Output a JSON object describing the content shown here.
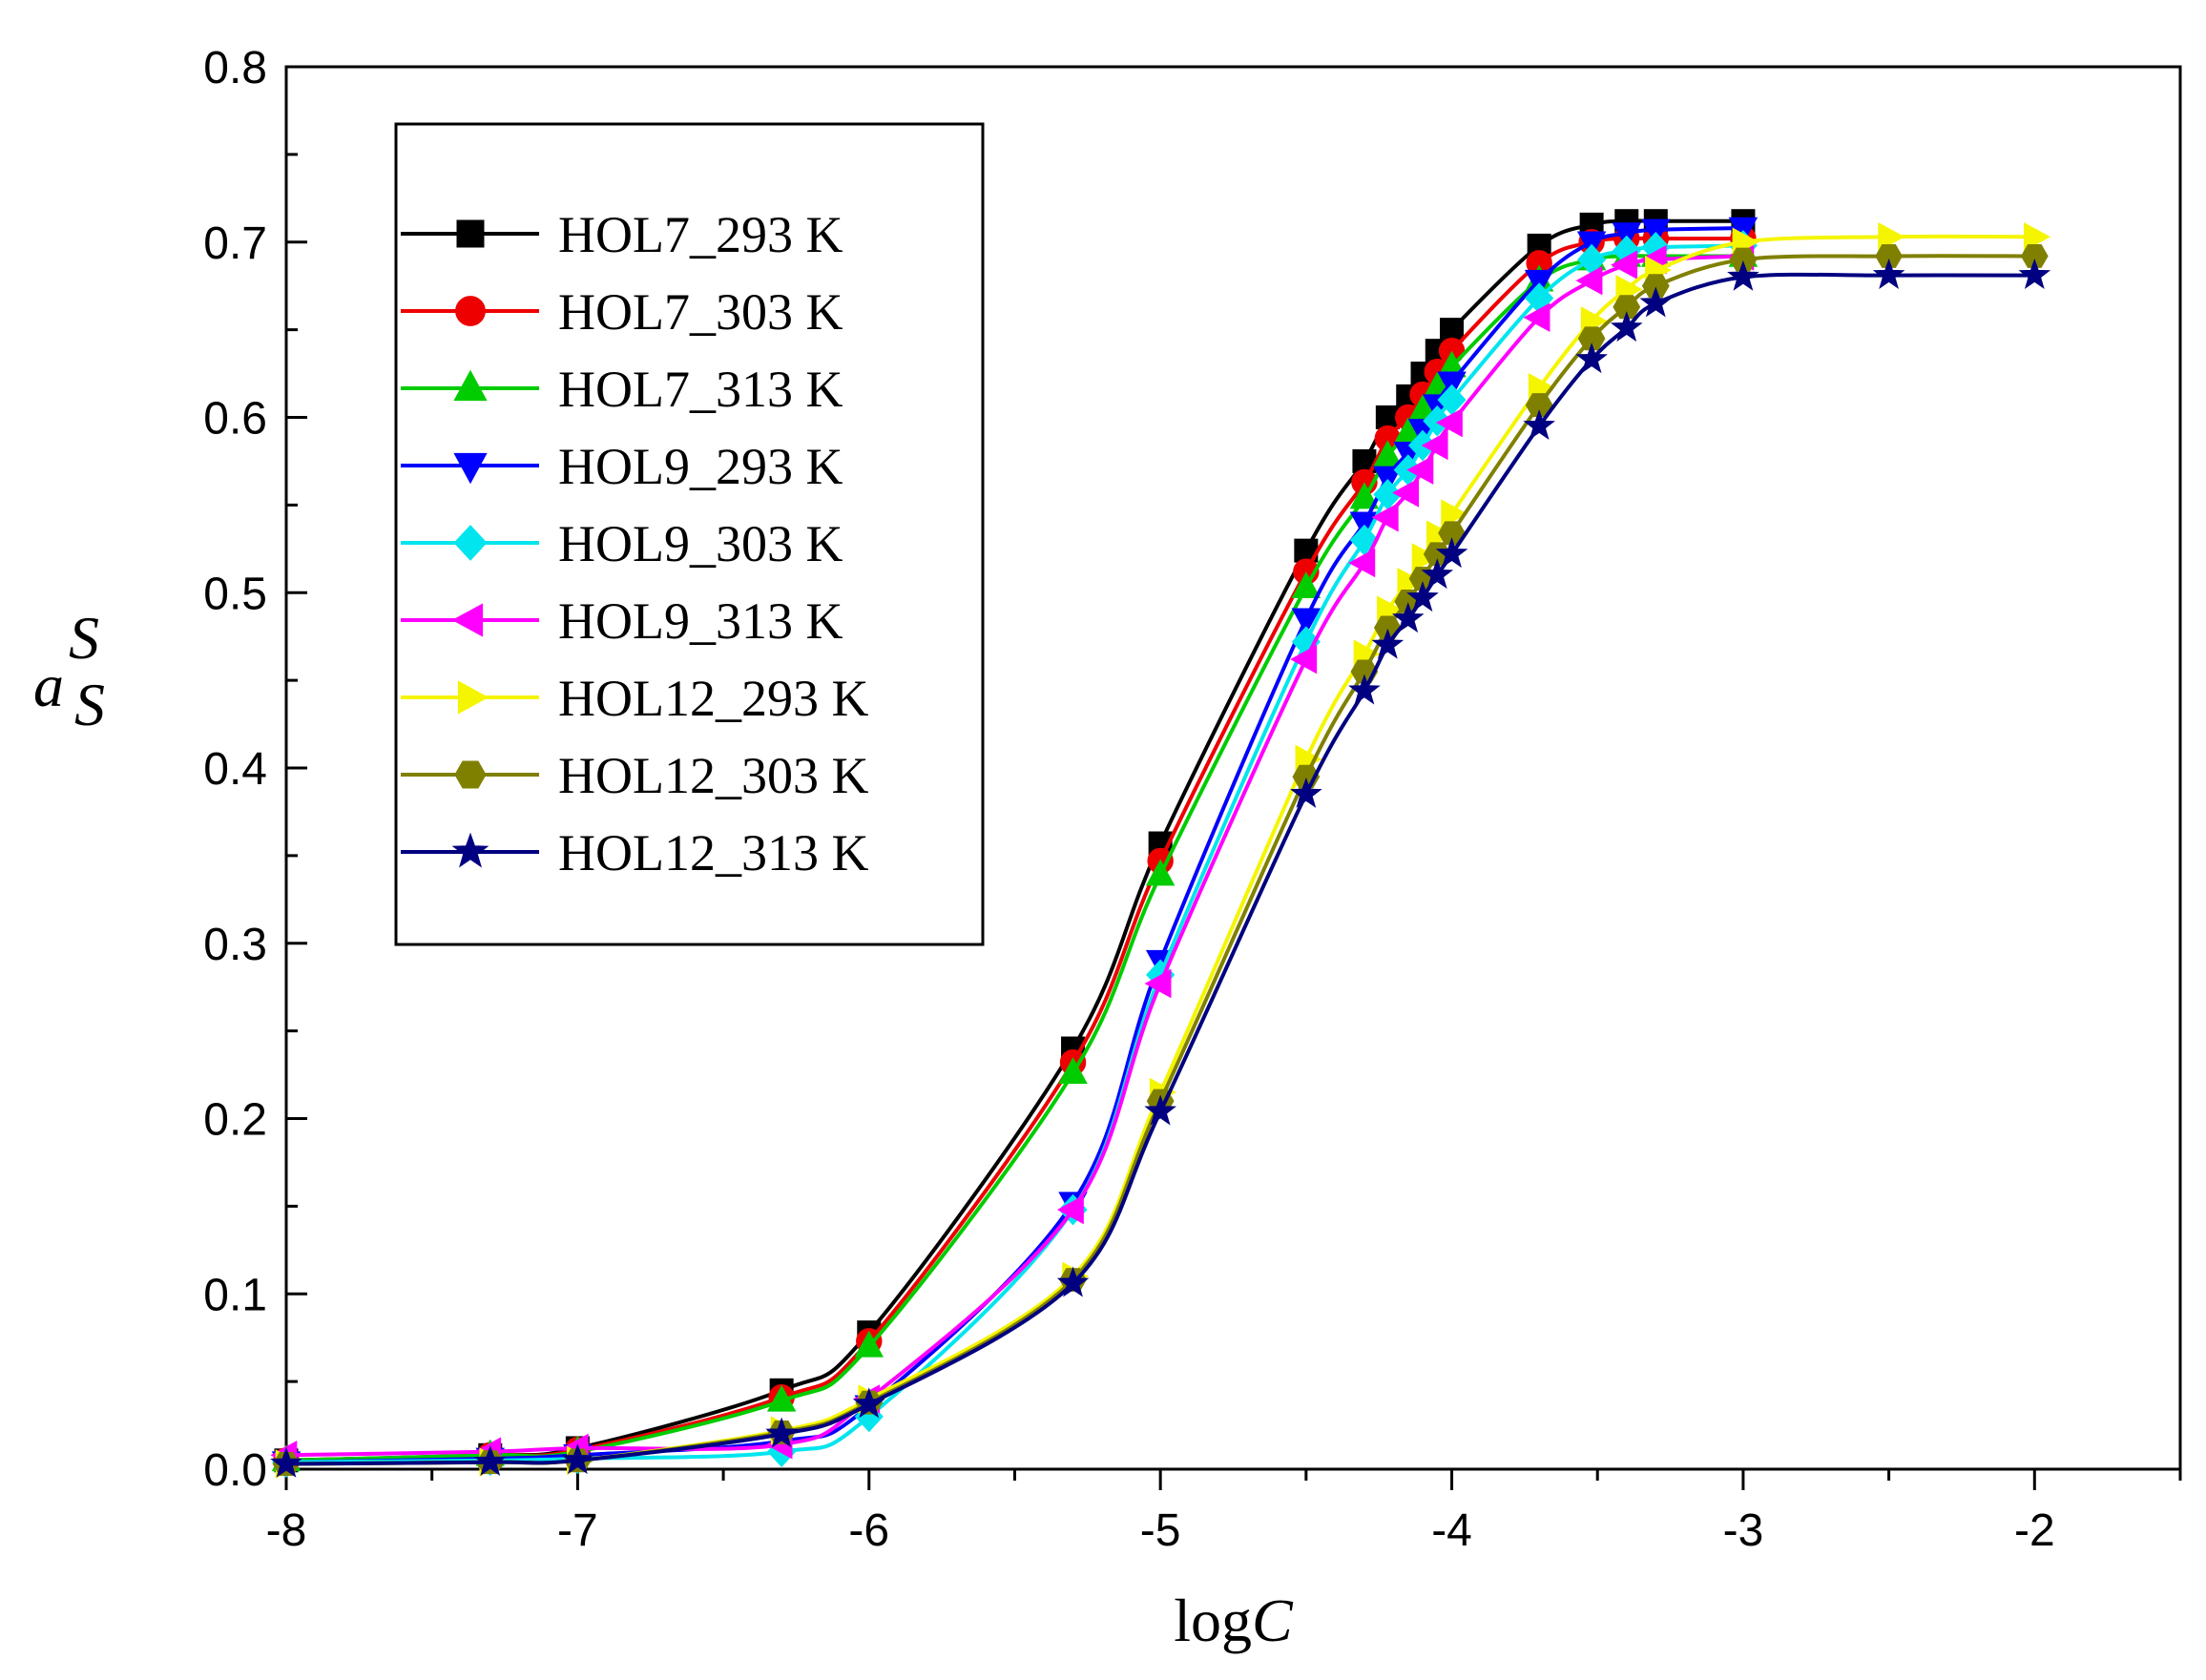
{
  "chart_data": {
    "type": "line",
    "title": "",
    "xlabel": {
      "base": "log",
      "italic": "C"
    },
    "ylabel": {
      "main": "a",
      "sup": "S",
      "sub": "S"
    },
    "xlim": [
      -8,
      -1.5
    ],
    "ylim": [
      0.0,
      0.8
    ],
    "xticks": [
      -8,
      -7,
      -6,
      -5,
      -4,
      -3,
      -2
    ],
    "xtick_labels": [
      "-8",
      "-7",
      "-6",
      "-5",
      "-4",
      "-3",
      "-2"
    ],
    "yticks": [
      0.0,
      0.1,
      0.2,
      0.3,
      0.4,
      0.5,
      0.6,
      0.7,
      0.8
    ],
    "ytick_labels": [
      "0.0",
      "0.1",
      "0.2",
      "0.3",
      "0.4",
      "0.5",
      "0.6",
      "0.7",
      "0.8"
    ],
    "grid": false,
    "legend_position": "top-left",
    "series": [
      {
        "name": "HOL7_293 K",
        "color": "#000000",
        "marker": "square",
        "x": [
          -8,
          -7.3,
          -7,
          -6.3,
          -6,
          -5.3,
          -5,
          -4.5,
          -4.3,
          -4.22,
          -4.15,
          -4.1,
          -4.05,
          -4,
          -3.7,
          -3.52,
          -3.4,
          -3.3,
          -3
        ],
        "y": [
          0.005,
          0.008,
          0.012,
          0.045,
          0.078,
          0.24,
          0.357,
          0.524,
          0.575,
          0.6,
          0.612,
          0.625,
          0.638,
          0.65,
          0.698,
          0.71,
          0.712,
          0.712,
          0.712
        ]
      },
      {
        "name": "HOL7_303 K",
        "color": "#ee0000",
        "marker": "circle",
        "x": [
          -8,
          -7.3,
          -7,
          -6.3,
          -6,
          -5.3,
          -5,
          -4.5,
          -4.3,
          -4.22,
          -4.15,
          -4.1,
          -4.05,
          -4,
          -3.7,
          -3.52,
          -3.4,
          -3.3,
          -3
        ],
        "y": [
          0.005,
          0.008,
          0.011,
          0.041,
          0.073,
          0.232,
          0.347,
          0.512,
          0.563,
          0.588,
          0.6,
          0.613,
          0.626,
          0.638,
          0.688,
          0.7,
          0.702,
          0.702,
          0.702
        ]
      },
      {
        "name": "HOL7_313 K",
        "color": "#00cc00",
        "marker": "triangle-up",
        "x": [
          -8,
          -7.3,
          -7,
          -6.3,
          -6,
          -5.3,
          -5,
          -4.5,
          -4.3,
          -4.22,
          -4.15,
          -4.1,
          -4.05,
          -4,
          -3.7,
          -3.52,
          -3.4,
          -3.3,
          -3
        ],
        "y": [
          0.005,
          0.008,
          0.01,
          0.039,
          0.07,
          0.226,
          0.339,
          0.503,
          0.554,
          0.578,
          0.591,
          0.604,
          0.617,
          0.629,
          0.678,
          0.69,
          0.692,
          0.692,
          0.692
        ]
      },
      {
        "name": "HOL9_293 K",
        "color": "#0000ff",
        "marker": "triangle-down",
        "x": [
          -8,
          -7.3,
          -7,
          -6.3,
          -6,
          -5.3,
          -5,
          -4.5,
          -4.3,
          -4.22,
          -4.15,
          -4.1,
          -4.05,
          -4,
          -3.7,
          -3.52,
          -3.4,
          -3.3,
          -3
        ],
        "y": [
          0.004,
          0.006,
          0.008,
          0.016,
          0.036,
          0.152,
          0.29,
          0.485,
          0.54,
          0.566,
          0.58,
          0.593,
          0.607,
          0.62,
          0.678,
          0.7,
          0.705,
          0.707,
          0.708
        ]
      },
      {
        "name": "HOL9_303 K",
        "color": "#00e5ee",
        "marker": "diamond",
        "x": [
          -8,
          -7.3,
          -7,
          -6.3,
          -6,
          -5.3,
          -5,
          -4.5,
          -4.3,
          -4.22,
          -4.15,
          -4.1,
          -4.05,
          -4,
          -3.7,
          -3.52,
          -3.4,
          -3.3,
          -3
        ],
        "y": [
          0.004,
          0.005,
          0.006,
          0.01,
          0.03,
          0.148,
          0.282,
          0.472,
          0.53,
          0.556,
          0.57,
          0.584,
          0.598,
          0.61,
          0.668,
          0.69,
          0.695,
          0.697,
          0.698
        ]
      },
      {
        "name": "HOL9_313 K",
        "color": "#ff00ff",
        "marker": "triangle-left",
        "x": [
          -8,
          -7.3,
          -7,
          -6.3,
          -6,
          -5.3,
          -5,
          -4.5,
          -4.3,
          -4.22,
          -4.15,
          -4.1,
          -4.05,
          -4,
          -3.7,
          -3.52,
          -3.4,
          -3.3,
          -3
        ],
        "y": [
          0.008,
          0.01,
          0.012,
          0.014,
          0.04,
          0.148,
          0.277,
          0.462,
          0.517,
          0.543,
          0.557,
          0.57,
          0.584,
          0.597,
          0.657,
          0.678,
          0.687,
          0.69,
          0.692
        ]
      },
      {
        "name": "HOL12_293 K",
        "color": "#f5f500",
        "marker": "triangle-right",
        "x": [
          -8,
          -7.3,
          -7,
          -6.3,
          -6,
          -5.3,
          -5,
          -4.5,
          -4.3,
          -4.22,
          -4.15,
          -4.1,
          -4.05,
          -4,
          -3.7,
          -3.52,
          -3.4,
          -3.3,
          -3,
          -2.5,
          -2
        ],
        "y": [
          0.003,
          0.004,
          0.005,
          0.022,
          0.04,
          0.11,
          0.215,
          0.405,
          0.465,
          0.49,
          0.506,
          0.52,
          0.533,
          0.545,
          0.617,
          0.655,
          0.673,
          0.684,
          0.7,
          0.703,
          0.703
        ]
      },
      {
        "name": "HOL12_303 K",
        "color": "#808000",
        "marker": "hexagon",
        "x": [
          -8,
          -7.3,
          -7,
          -6.3,
          -6,
          -5.3,
          -5,
          -4.5,
          -4.3,
          -4.22,
          -4.15,
          -4.1,
          -4.05,
          -4,
          -3.7,
          -3.52,
          -3.4,
          -3.3,
          -3,
          -2.5,
          -2
        ],
        "y": [
          0.003,
          0.004,
          0.005,
          0.021,
          0.038,
          0.108,
          0.21,
          0.395,
          0.455,
          0.48,
          0.495,
          0.508,
          0.522,
          0.534,
          0.607,
          0.645,
          0.663,
          0.675,
          0.69,
          0.692,
          0.692
        ]
      },
      {
        "name": "HOL12_313 K",
        "color": "#000080",
        "marker": "star",
        "x": [
          -8,
          -7.3,
          -7,
          -6.3,
          -6,
          -5.3,
          -5,
          -4.5,
          -4.3,
          -4.22,
          -4.15,
          -4.1,
          -4.05,
          -4,
          -3.7,
          -3.52,
          -3.4,
          -3.3,
          -3,
          -2.5,
          -2
        ],
        "y": [
          0.003,
          0.004,
          0.005,
          0.02,
          0.037,
          0.106,
          0.204,
          0.385,
          0.444,
          0.47,
          0.485,
          0.497,
          0.51,
          0.522,
          0.595,
          0.633,
          0.651,
          0.665,
          0.68,
          0.681,
          0.681
        ]
      }
    ]
  }
}
